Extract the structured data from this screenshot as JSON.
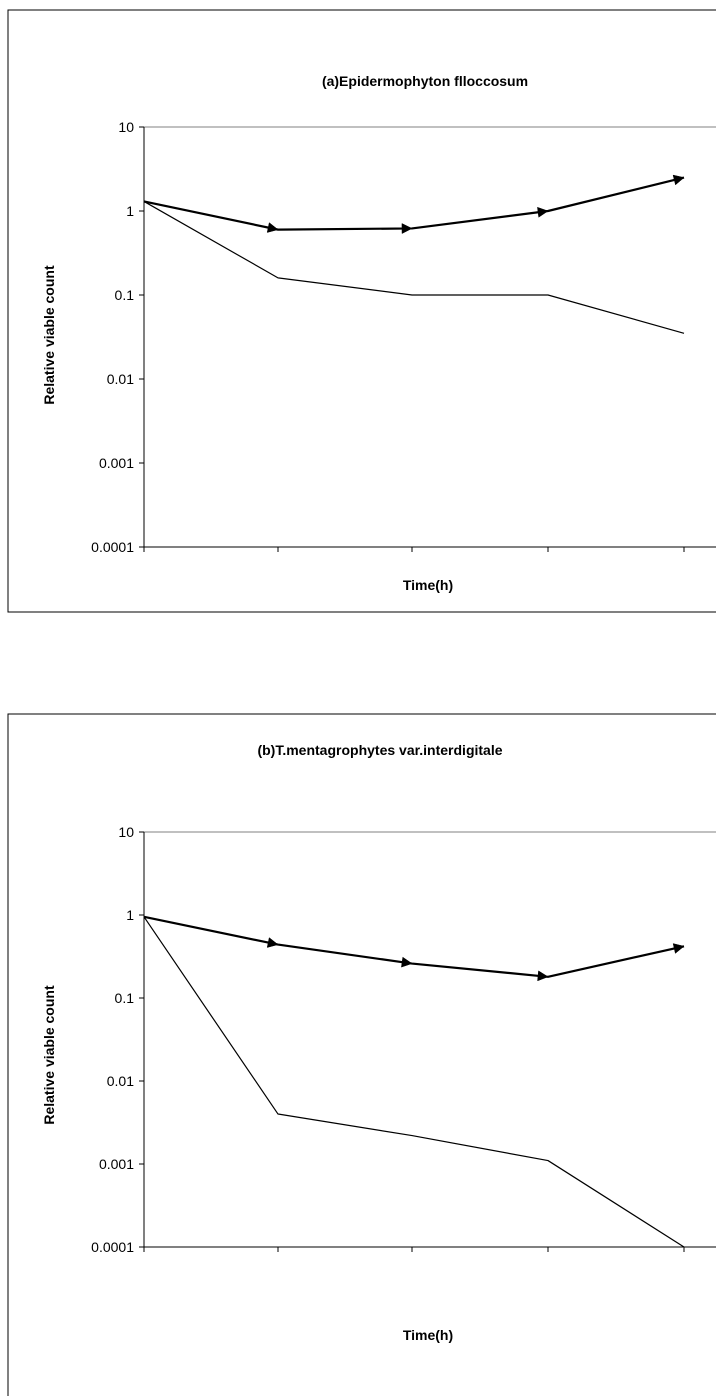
{
  "chart_data": [
    {
      "type": "line",
      "title": "(a)Epidermophyton flloccosum",
      "xlabel": "Time(h)",
      "ylabel": "Relative viable count",
      "y_scale": "log",
      "ylim": [
        0.0001,
        10
      ],
      "ytick_labels": [
        "10",
        "1",
        "0.1",
        "0.01",
        "0.001",
        "0.0001"
      ],
      "ytick_values": [
        10,
        1,
        0.1,
        0.01,
        0.001,
        0.0001
      ],
      "x_tick_count": 5,
      "grid": "top gridline only",
      "legend": "none",
      "series": [
        {
          "style": "thick-arrow",
          "values": [
            1.3,
            0.6,
            0.62,
            1.0,
            2.5
          ]
        },
        {
          "style": "thin",
          "values": [
            1.3,
            0.16,
            0.1,
            0.1,
            0.035
          ]
        }
      ]
    },
    {
      "type": "line",
      "title": "(b)T.mentagrophytes var.interdigitale",
      "xlabel": "Time(h)",
      "ylabel": "Relative viable count",
      "y_scale": "log",
      "ylim": [
        0.0001,
        10
      ],
      "ytick_labels": [
        "10",
        "1",
        "0.1",
        "0.01",
        "0.001",
        "0.0001"
      ],
      "ytick_values": [
        10,
        1,
        0.1,
        0.01,
        0.001,
        0.0001
      ],
      "x_tick_count": 5,
      "grid": "top gridline only",
      "legend": "none",
      "series": [
        {
          "style": "thick-arrow",
          "values": [
            0.95,
            0.44,
            0.26,
            0.18,
            0.42
          ]
        },
        {
          "style": "thin",
          "values": [
            0.95,
            0.004,
            0.0022,
            0.0011,
            0.0001
          ]
        }
      ]
    }
  ]
}
